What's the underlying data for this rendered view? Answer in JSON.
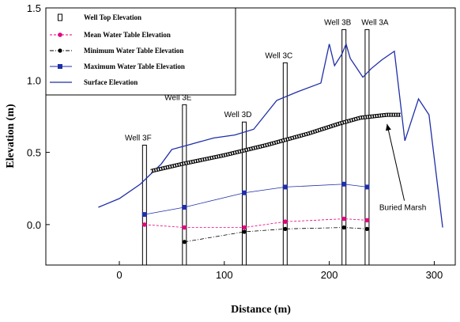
{
  "chart_data": {
    "type": "line",
    "xlabel": "Distance (m)",
    "ylabel": "Elevation (m)",
    "xlim": [
      -70,
      320
    ],
    "ylim": [
      -0.28,
      1.5
    ],
    "x_ticks": [
      0,
      100,
      200,
      300
    ],
    "y_ticks": [
      0.0,
      0.5,
      1.0,
      1.5
    ],
    "y_tick_labels": [
      "0.0",
      "0.5",
      "1.0",
      "1.5"
    ],
    "grid": false,
    "legend_position": "top-left",
    "series": [
      {
        "name": "Well Top Elevation",
        "marker": "hollow-square",
        "color": "#000000",
        "x": [
          24,
          62,
          119,
          158,
          214,
          236
        ],
        "values": [
          0.55,
          0.83,
          0.71,
          1.12,
          1.35,
          1.35
        ]
      },
      {
        "name": "Mean Water Table Elevation",
        "marker": "dot",
        "color": "#e6007e",
        "x": [
          24,
          62,
          119,
          158,
          214,
          236
        ],
        "values": [
          0.0,
          -0.02,
          -0.02,
          0.02,
          0.04,
          0.03
        ]
      },
      {
        "name": "Minimum Water Table Elevation",
        "marker": "diamond",
        "color": "#000000",
        "x": [
          62,
          119,
          158,
          214,
          236
        ],
        "values": [
          -0.12,
          -0.05,
          -0.03,
          -0.02,
          -0.03
        ]
      },
      {
        "name": "Maximum Water Table Elevation",
        "marker": "x",
        "color": "#1f2ea8",
        "x": [
          24,
          62,
          119,
          158,
          214,
          236
        ],
        "values": [
          0.07,
          0.12,
          0.22,
          0.26,
          0.28,
          0.26
        ]
      },
      {
        "name": "Surface Elevation",
        "marker": "none",
        "color": "#1f2ea8",
        "x": [
          -20,
          0,
          20,
          40,
          50,
          65,
          90,
          110,
          128,
          150,
          170,
          192,
          200,
          205,
          212,
          216,
          220,
          232,
          240,
          250,
          262,
          272,
          285,
          295,
          308
        ],
        "values": [
          0.12,
          0.18,
          0.28,
          0.42,
          0.52,
          0.55,
          0.6,
          0.62,
          0.66,
          0.86,
          0.92,
          0.98,
          1.25,
          1.1,
          1.18,
          1.25,
          1.15,
          1.02,
          1.08,
          1.14,
          1.2,
          0.58,
          0.87,
          0.76,
          -0.02
        ]
      }
    ],
    "buried_marsh": {
      "x": [
        30,
        60,
        100,
        140,
        180,
        210,
        230,
        255,
        268
      ],
      "values": [
        0.37,
        0.42,
        0.48,
        0.55,
        0.63,
        0.7,
        0.74,
        0.76,
        0.76
      ]
    },
    "well_labels": [
      {
        "text": "Well 3F",
        "x": 24,
        "y": 0.55
      },
      {
        "text": "Well 3E",
        "x": 62,
        "y": 0.83
      },
      {
        "text": "Well 3D",
        "x": 119,
        "y": 0.71
      },
      {
        "text": "Well 3C",
        "x": 158,
        "y": 1.12
      },
      {
        "text": "Well 3B",
        "x": 214,
        "y": 1.35
      },
      {
        "text": "Well 3A",
        "x": 236,
        "y": 1.35
      }
    ],
    "annotations": [
      {
        "text": "Buried Marsh",
        "x": 270,
        "y": 0.1,
        "arrow_to_x": 255,
        "arrow_to_y": 0.74
      }
    ]
  }
}
